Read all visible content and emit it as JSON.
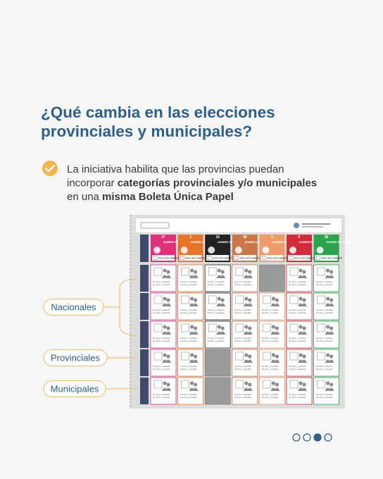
{
  "title_lines": [
    "¿Qué cambia en las elecciones",
    "provinciales y municipales?"
  ],
  "body_lines": [
    [
      {
        "text": "La iniciativa habilita que las provincias puedan",
        "bold": false
      }
    ],
    [
      {
        "text": "incorporar ",
        "bold": false
      },
      {
        "text": "categorías provinciales y/o municipales",
        "bold": true
      }
    ],
    [
      {
        "text": "en una ",
        "bold": false
      },
      {
        "text": "misma Boleta Única Papel",
        "bold": true
      }
    ]
  ],
  "ballot": {
    "party_name_label": "NOMBRE DEL PARTIDO",
    "full_list_label": "VOTO LISTA COMPLETA",
    "candidate_label": "Nombre y Apellido",
    "parties": [
      {
        "number": "27",
        "color": "#e0307a"
      },
      {
        "number": "2",
        "color": "#e8742a"
      },
      {
        "number": "16",
        "color": "#222222"
      },
      {
        "number": "38",
        "color": "#c8764a"
      },
      {
        "number": "3",
        "color": "#ef9a68"
      },
      {
        "number": "9",
        "color": "#d42b3a"
      },
      {
        "number": "36",
        "color": "#2aa44a"
      }
    ],
    "row_groups": [
      {
        "label": "Nacionales",
        "rows": 3
      },
      {
        "label": "Provinciales",
        "rows": 1
      },
      {
        "label": "Municipales",
        "rows": 1
      }
    ],
    "blank_cells": [
      [
        0,
        4
      ],
      [
        3,
        2
      ],
      [
        4,
        2
      ]
    ]
  },
  "pager": {
    "pages": 4,
    "current": 3
  }
}
